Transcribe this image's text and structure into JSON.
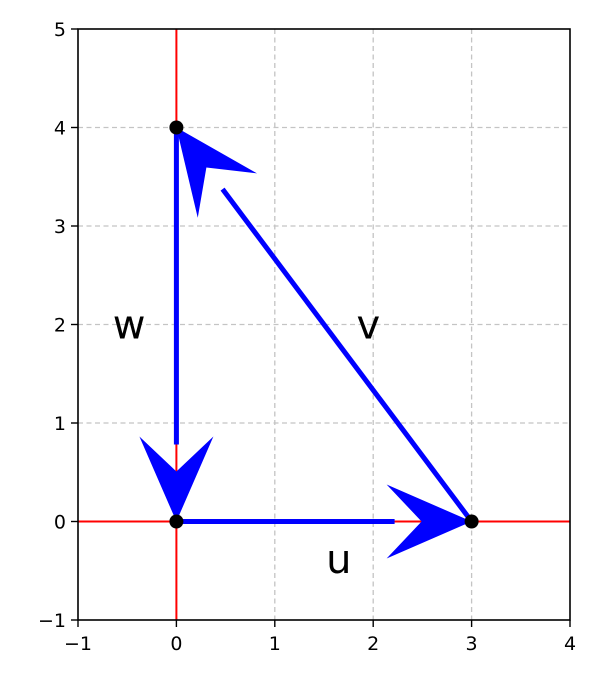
{
  "chart_data": {
    "type": "vector-plot",
    "xlim": [
      -1,
      4
    ],
    "ylim": [
      -1,
      5
    ],
    "xticks": [
      "−1",
      "0",
      "1",
      "2",
      "3",
      "4"
    ],
    "yticks": [
      "−1",
      "0",
      "1",
      "2",
      "3",
      "4",
      "5"
    ],
    "xtick_values": [
      -1,
      0,
      1,
      2,
      3,
      4
    ],
    "ytick_values": [
      -1,
      0,
      1,
      2,
      3,
      4,
      5
    ],
    "grid": true,
    "axis_lines": {
      "x0": 0,
      "y0": 0,
      "color": "#ff0000"
    },
    "vectors": [
      {
        "label": "u",
        "from": [
          0,
          0
        ],
        "to": [
          3,
          0
        ],
        "color": "#0000ff",
        "label_pos": [
          1.65,
          -0.38
        ]
      },
      {
        "label": "v",
        "from": [
          3,
          0
        ],
        "to": [
          0,
          4
        ],
        "color": "#0000ff",
        "label_pos": [
          1.95,
          2.0
        ]
      },
      {
        "label": "w",
        "from": [
          0,
          4
        ],
        "to": [
          0,
          0
        ],
        "color": "#0000ff",
        "label_pos": [
          -0.48,
          2.0
        ]
      }
    ],
    "points": [
      {
        "x": 0,
        "y": 0
      },
      {
        "x": 3,
        "y": 0
      },
      {
        "x": 0,
        "y": 4
      }
    ]
  }
}
